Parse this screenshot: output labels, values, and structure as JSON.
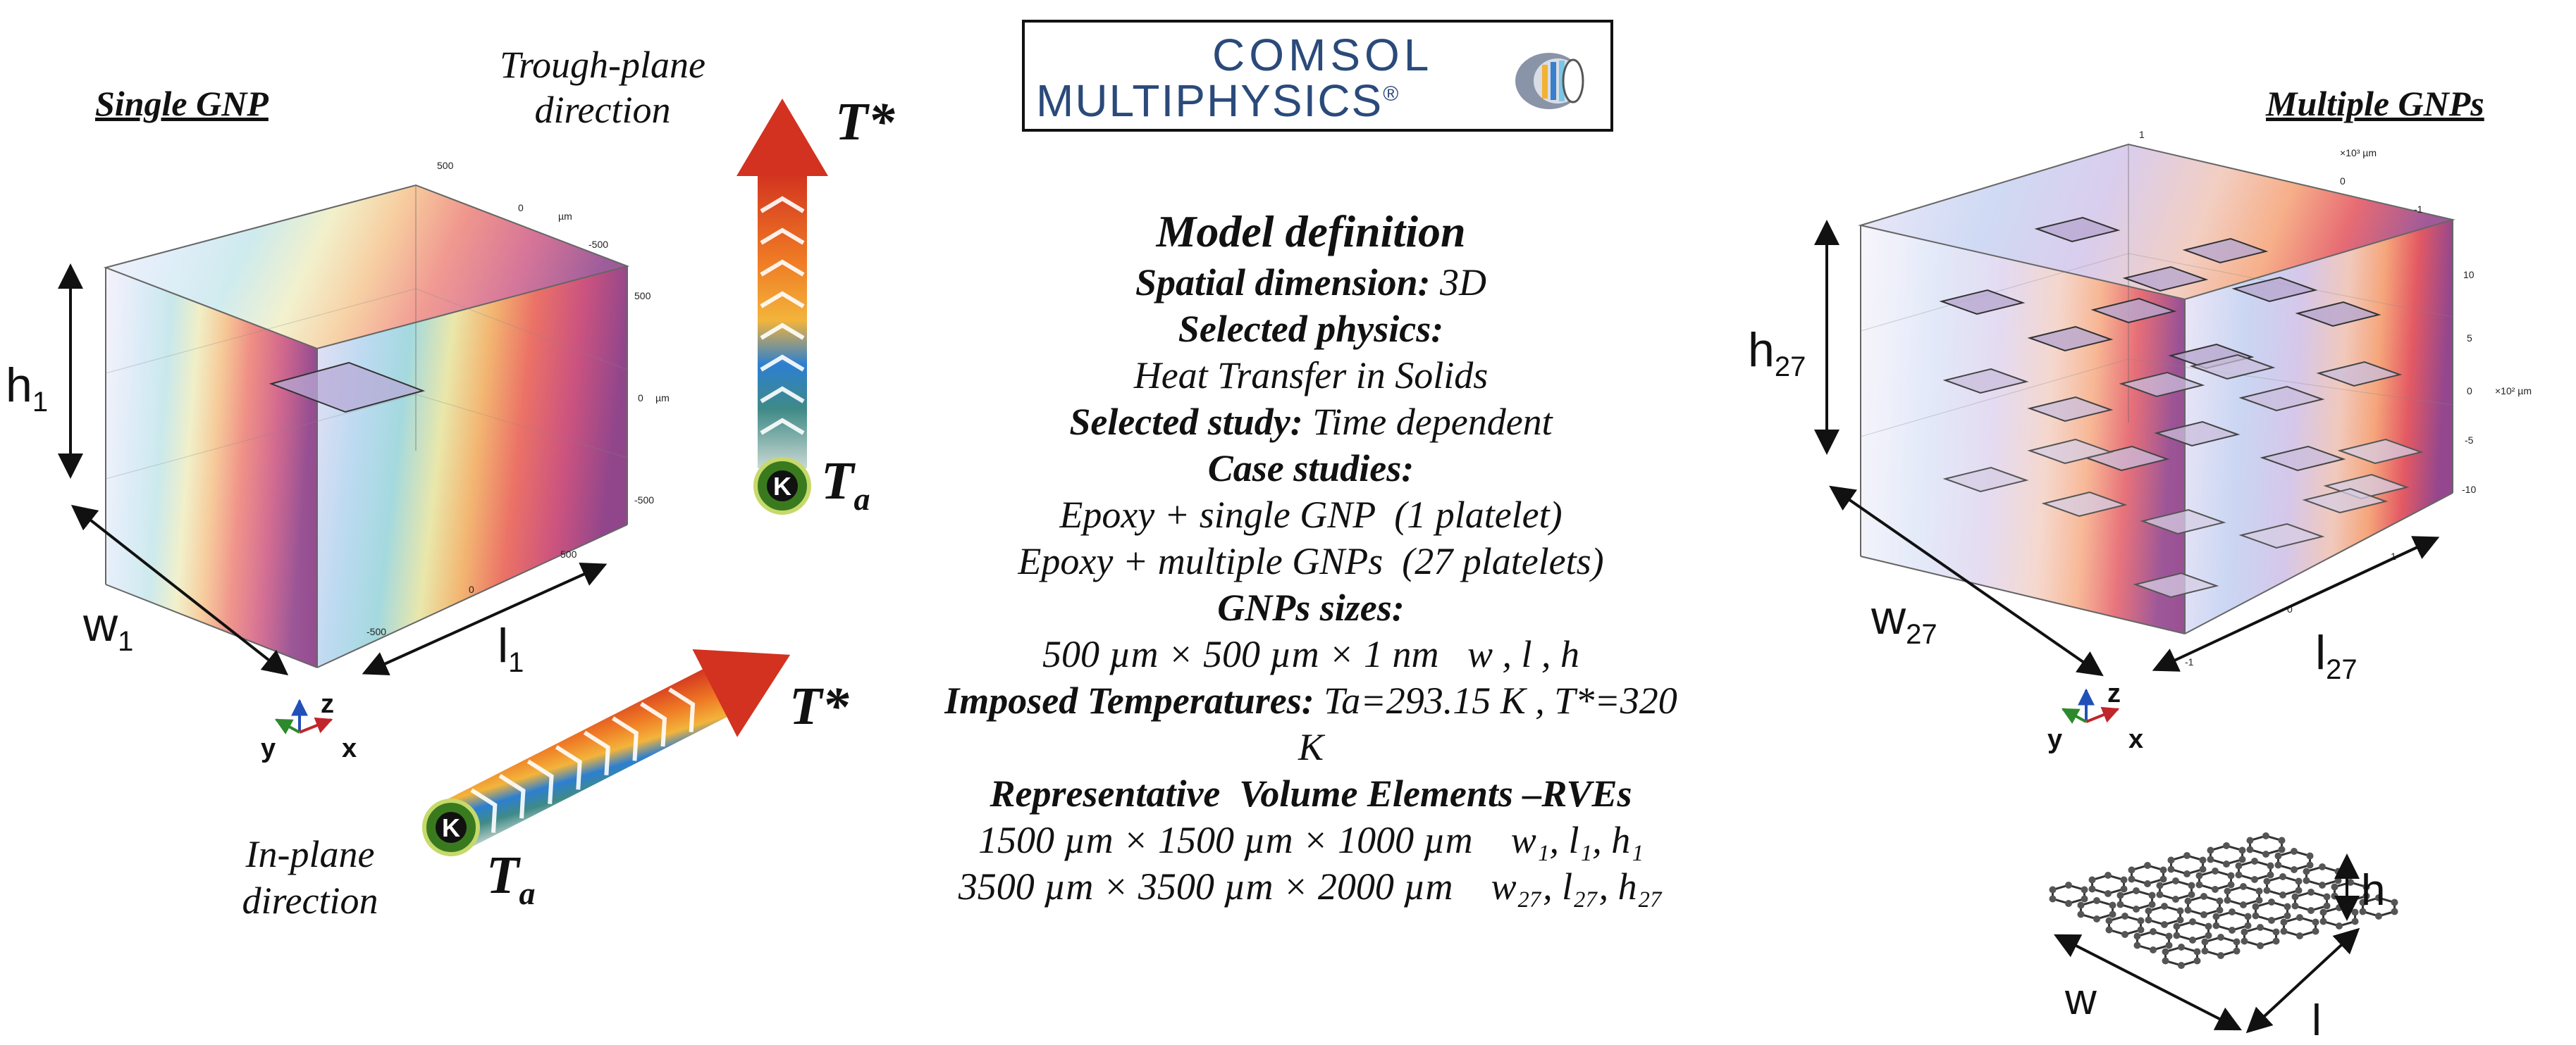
{
  "left_panel": {
    "title": "Single GNP",
    "dim_h": "h",
    "dim_h_sub": "1",
    "dim_w": "w",
    "dim_w_sub": "1",
    "dim_l": "l",
    "dim_l_sub": "1",
    "ticks_top": [
      "500",
      "0",
      "-500"
    ],
    "ticks_top_unit": "µm",
    "ticks_right": [
      "500",
      "0",
      "-500"
    ],
    "ticks_right_unit": "µm",
    "ticks_bottom": [
      "500",
      "0",
      "-500"
    ],
    "axes": {
      "z": "z",
      "y": "y",
      "x": "x"
    }
  },
  "right_panel": {
    "title": "Multiple GNPs",
    "dim_h": "h",
    "dim_h_sub": "27",
    "dim_w": "w",
    "dim_w_sub": "27",
    "dim_l": "l",
    "dim_l_sub": "27",
    "ticks_top": [
      "1",
      "0",
      "-1"
    ],
    "ticks_top_unit": "×10³ µm",
    "ticks_right": [
      "10",
      "5",
      "0",
      "-5",
      "-10"
    ],
    "ticks_right_unit": "×10² µm",
    "ticks_bottom": [
      "1",
      "0",
      "-1"
    ],
    "axes": {
      "z": "z",
      "y": "y",
      "x": "x"
    }
  },
  "arrows": {
    "through_plane_label_1": "Trough-plane",
    "through_plane_label_2": "direction",
    "in_plane_label_1": "In-plane",
    "in_plane_label_2": "direction",
    "t_star": "T*",
    "t_a": "T",
    "t_a_sub": "a",
    "k_badge": "K"
  },
  "logo": {
    "line1": "COMSOL",
    "line2": "MULTIPHYSICS",
    "registered": "®"
  },
  "model_definition": {
    "heading": "Model definition",
    "spatial_label": "Spatial dimension:",
    "spatial_value": "3D",
    "physics_label": "Selected physics:",
    "physics_value": "Heat Transfer in Solids",
    "study_label": "Selected study:",
    "study_value": "Time dependent",
    "cases_label": "Case studies:",
    "case_1": "Epoxy + single GNP  (1 platelet)",
    "case_2": "Epoxy + multiple GNPs  (27 platelets)",
    "sizes_label": "GNPs sizes:",
    "sizes_value": "500 µm × 500 µm × 1 nm   w , l , h",
    "temps_label": "Imposed Temperatures:",
    "temps_value": "Ta=293.15 K , T*=320 K",
    "rve_label": "Representative  Volume Elements –RVEs",
    "rve_1_value": "1500 µm × 1500 µm × 1000 µm",
    "rve_1_dims": "w₁, l₁, h₁",
    "rve_2_value": "3500 µm × 3500 µm × 2000 µm",
    "rve_2_dims": "w₂₇, l₂₇, h₂₇"
  },
  "graphene_inset": {
    "w": "w",
    "l": "l",
    "h": "h"
  },
  "colors": {
    "hot": "#d9312a",
    "cold": "#3a8fd0",
    "k_badge": "#3a7a1e"
  }
}
